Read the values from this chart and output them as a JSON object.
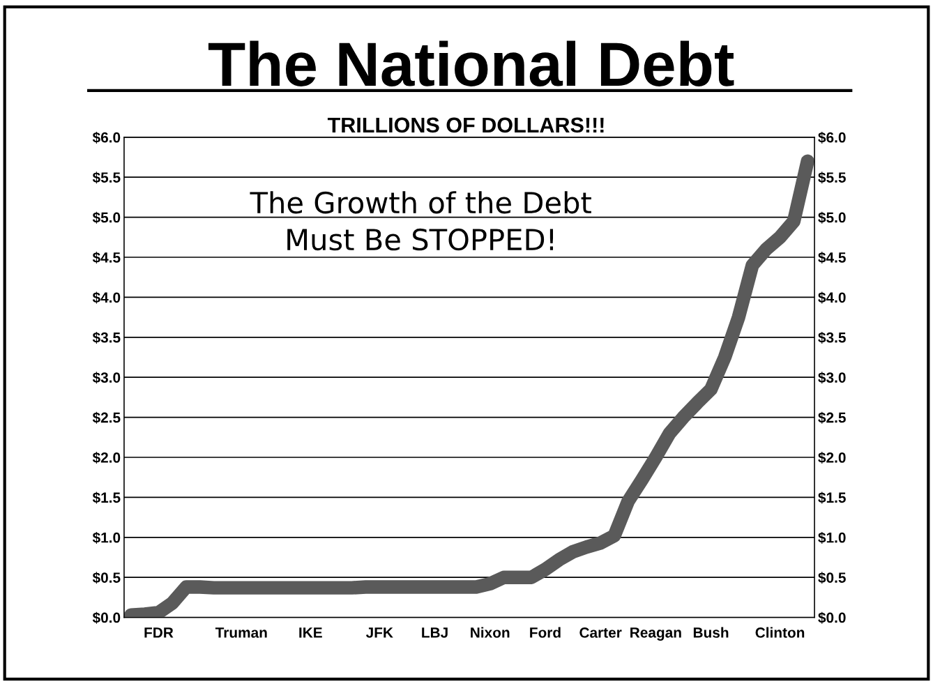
{
  "chart_data": {
    "type": "line",
    "title": "The National Debt",
    "subtitle": "TRILLIONS OF DOLLARS!!!",
    "annotations": [
      "The Growth of the Debt\nMust Be STOPPED!"
    ],
    "categories": [
      null,
      null,
      "FDR",
      null,
      null,
      null,
      null,
      null,
      "Truman",
      null,
      null,
      null,
      null,
      "IKE",
      null,
      null,
      null,
      null,
      "JFK",
      null,
      null,
      null,
      "LBJ",
      null,
      null,
      null,
      "Nixon",
      null,
      null,
      null,
      "Ford",
      null,
      null,
      null,
      "Carter",
      null,
      null,
      null,
      "Reagan",
      null,
      null,
      null,
      "Bush",
      null,
      null,
      null,
      null,
      "Clinton",
      null,
      null
    ],
    "series": [
      {
        "color": "#5a5a5a",
        "values": [
          0.03,
          0.04,
          0.06,
          0.18,
          0.38,
          0.38,
          0.37,
          0.37,
          0.37,
          0.37,
          0.37,
          0.37,
          0.37,
          0.37,
          0.37,
          0.37,
          0.37,
          0.38,
          0.38,
          0.38,
          0.38,
          0.38,
          0.38,
          0.38,
          0.38,
          0.38,
          0.42,
          0.5,
          0.5,
          0.5,
          0.6,
          0.72,
          0.82,
          0.88,
          0.93,
          1.02,
          1.45,
          1.72,
          2.0,
          2.3,
          2.5,
          2.68,
          2.85,
          3.25,
          3.75,
          4.4,
          4.6,
          4.75,
          4.95,
          5.7
        ]
      }
    ],
    "ylim": [
      0,
      6
    ],
    "yticks": [
      {
        "value": 0,
        "label": "$0.0"
      },
      {
        "value": 0.5,
        "label": "$0.5"
      },
      {
        "value": 1,
        "label": "$1.0"
      },
      {
        "value": 1.5,
        "label": "$1.5"
      },
      {
        "value": 2,
        "label": "$2.0"
      },
      {
        "value": 2.5,
        "label": "$2.5"
      },
      {
        "value": 3,
        "label": "$3.0"
      },
      {
        "value": 3.5,
        "label": "$3.5"
      },
      {
        "value": 4,
        "label": "$4.0"
      },
      {
        "value": 4.5,
        "label": "$4.5"
      },
      {
        "value": 5,
        "label": "$5.0"
      },
      {
        "value": 5.5,
        "label": "$5.5"
      },
      {
        "value": 6,
        "label": "$6.0"
      }
    ],
    "y2lim": [
      0,
      6
    ],
    "y2ticks": [
      {
        "value": 0,
        "label": "$0.0"
      },
      {
        "value": 0.5,
        "label": "$0.5"
      },
      {
        "value": 1,
        "label": "$1.0"
      },
      {
        "value": 1.5,
        "label": "$1.5"
      },
      {
        "value": 2,
        "label": "$2.0"
      },
      {
        "value": 2.5,
        "label": "$2.5"
      },
      {
        "value": 3,
        "label": "$3.0"
      },
      {
        "value": 3.5,
        "label": "$3.5"
      },
      {
        "value": 4,
        "label": "$4.0"
      },
      {
        "value": 4.5,
        "label": "$4.5"
      },
      {
        "value": 5,
        "label": "$5.0"
      },
      {
        "value": 5.5,
        "label": "$5.5"
      },
      {
        "value": 6,
        "label": "$6.0"
      }
    ],
    "grid": "y",
    "line_style": "solid"
  }
}
